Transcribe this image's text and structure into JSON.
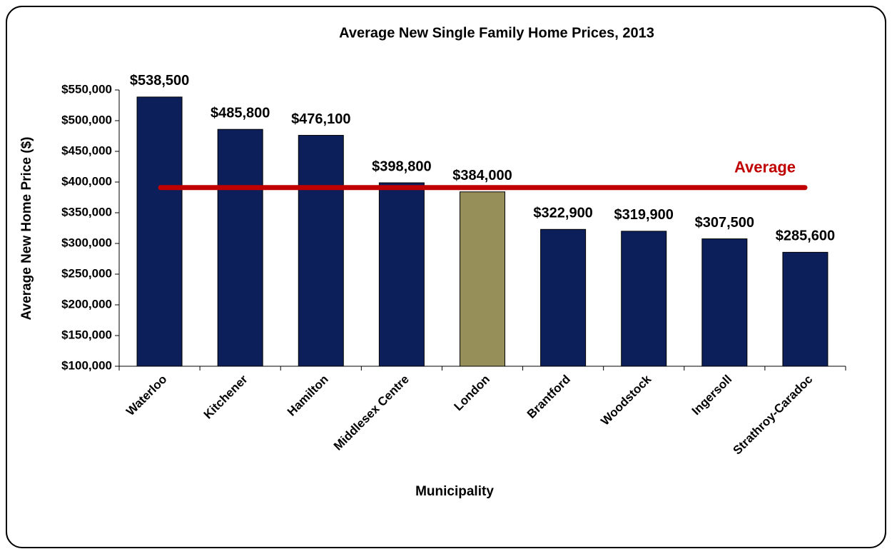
{
  "chart_data": {
    "type": "bar",
    "title": "Average New Single Family Home Prices, 2013",
    "x_label": "Municipality",
    "y_label": "Average New Home Price ($)",
    "categories": [
      "Waterloo",
      "Kitchener",
      "Hamilton",
      "Middlesex Centre",
      "London",
      "Brantford",
      "Woodstock",
      "Ingersoll",
      "Strathroy-Caradoc"
    ],
    "values": [
      538500,
      485800,
      476100,
      398800,
      384000,
      322900,
      319900,
      307500,
      285600
    ],
    "value_labels": [
      "$538,500",
      "$485,800",
      "$476,100",
      "$398,800",
      "$384,000",
      "$322,900",
      "$319,900",
      "$307,500",
      "$285,600"
    ],
    "colors": [
      "#0c1f5b",
      "#0c1f5b",
      "#0c1f5b",
      "#0c1f5b",
      "#978f59",
      "#0c1f5b",
      "#0c1f5b",
      "#0c1f5b",
      "#0c1f5b"
    ],
    "ylim": [
      100000,
      550000
    ],
    "yticks": [
      {
        "value": 100000,
        "label": "$100,000"
      },
      {
        "value": 150000,
        "label": "$150,000"
      },
      {
        "value": 200000,
        "label": "$200,000"
      },
      {
        "value": 250000,
        "label": "$250,000"
      },
      {
        "value": 300000,
        "label": "$300,000"
      },
      {
        "value": 350000,
        "label": "$350,000"
      },
      {
        "value": 400000,
        "label": "$400,000"
      },
      {
        "value": 450000,
        "label": "$450,000"
      },
      {
        "value": 500000,
        "label": "$500,000"
      },
      {
        "value": 550000,
        "label": "$550,000"
      }
    ],
    "reference_line": {
      "label": "Average",
      "value": 391000,
      "color": "#c00000"
    }
  }
}
